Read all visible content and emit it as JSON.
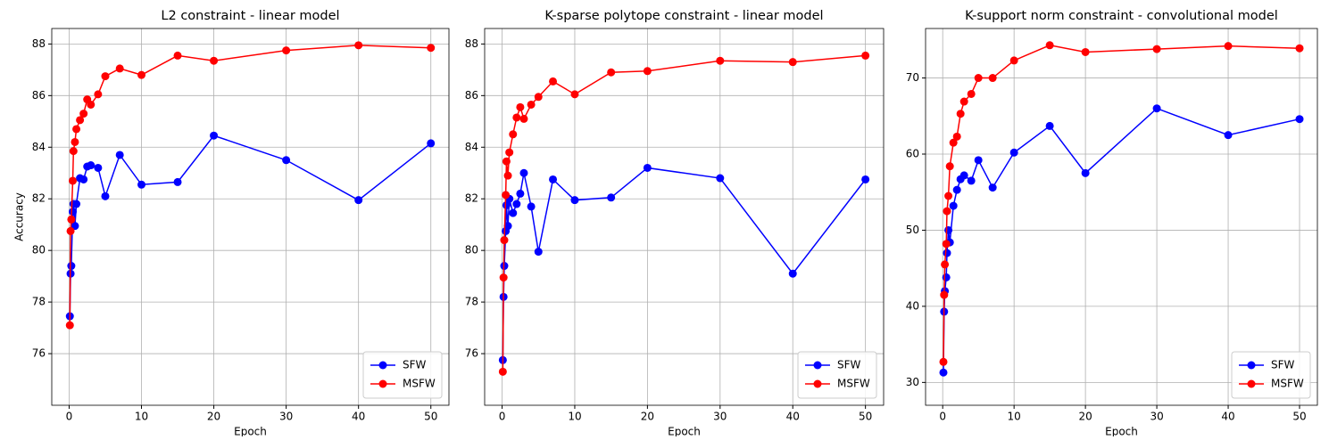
{
  "chart_data": [
    {
      "type": "line",
      "title": "L2 constraint - linear model",
      "xlabel": "Epoch",
      "ylabel": "Accuracy",
      "x": [
        0.1,
        0.2,
        0.3,
        0.5,
        0.6,
        0.8,
        1,
        1.5,
        2,
        2.5,
        3,
        4,
        5,
        7,
        10,
        15,
        20,
        30,
        40,
        50
      ],
      "series": [
        {
          "name": "SFW",
          "color": "#0000ff",
          "values": [
            77.45,
            79.1,
            79.4,
            81.5,
            81.8,
            80.95,
            81.8,
            82.8,
            82.75,
            83.25,
            83.3,
            83.2,
            82.1,
            83.7,
            82.55,
            82.65,
            84.45,
            83.5,
            81.95,
            84.15
          ]
        },
        {
          "name": "MSFW",
          "color": "#ff0000",
          "values": [
            77.1,
            80.75,
            81.2,
            82.7,
            83.85,
            84.2,
            84.7,
            85.05,
            85.3,
            85.85,
            85.65,
            86.05,
            86.75,
            87.05,
            86.8,
            87.55,
            87.35,
            87.75,
            87.95,
            87.85
          ]
        }
      ],
      "xlim": [
        -2.4,
        52.5
      ],
      "ylim": [
        74.0,
        88.6
      ],
      "xticks": [
        0,
        10,
        20,
        30,
        40,
        50
      ],
      "yticks": [
        76,
        78,
        80,
        82,
        84,
        86,
        88
      ],
      "grid": true,
      "legend": "lower right"
    },
    {
      "type": "line",
      "title": "K-sparse polytope constraint - linear model",
      "xlabel": "Epoch",
      "x": [
        0.1,
        0.2,
        0.3,
        0.5,
        0.6,
        0.8,
        1,
        1.5,
        2,
        2.5,
        3,
        4,
        5,
        7,
        10,
        15,
        20,
        30,
        40,
        50
      ],
      "series": [
        {
          "name": "SFW",
          "color": "#0000ff",
          "values": [
            75.75,
            78.2,
            79.4,
            80.75,
            81.75,
            80.95,
            82.0,
            81.45,
            81.8,
            82.2,
            83.0,
            81.7,
            79.95,
            82.75,
            81.95,
            82.05,
            83.2,
            82.8,
            79.1,
            82.75
          ]
        },
        {
          "name": "MSFW",
          "color": "#ff0000",
          "values": [
            75.3,
            78.95,
            80.4,
            82.15,
            83.45,
            82.9,
            83.8,
            84.5,
            85.15,
            85.55,
            85.1,
            85.65,
            85.95,
            86.55,
            86.05,
            86.9,
            86.95,
            87.35,
            87.3,
            87.55
          ]
        }
      ],
      "xlim": [
        -2.4,
        52.5
      ],
      "ylim": [
        74.0,
        88.6
      ],
      "xticks": [
        0,
        10,
        20,
        30,
        40,
        50
      ],
      "yticks": [
        76,
        78,
        80,
        82,
        84,
        86,
        88
      ],
      "grid": true,
      "legend": "lower right"
    },
    {
      "type": "line",
      "title": "K-support norm constraint - convolutional model",
      "xlabel": "Epoch",
      "x": [
        0.1,
        0.2,
        0.3,
        0.5,
        0.6,
        0.8,
        1,
        1.5,
        2,
        2.5,
        3,
        4,
        5,
        7,
        10,
        15,
        20,
        30,
        40,
        50
      ],
      "series": [
        {
          "name": "SFW",
          "color": "#0000ff",
          "values": [
            31.3,
            39.3,
            42.0,
            43.8,
            47.0,
            50.0,
            48.4,
            53.2,
            55.3,
            56.7,
            57.2,
            56.5,
            59.2,
            55.6,
            60.2,
            63.7,
            57.5,
            66.0,
            62.5,
            64.6
          ]
        },
        {
          "name": "MSFW",
          "color": "#ff0000",
          "values": [
            32.7,
            41.5,
            45.5,
            48.2,
            52.5,
            54.5,
            58.4,
            61.5,
            62.3,
            65.3,
            66.9,
            67.9,
            70.0,
            70.0,
            72.3,
            74.3,
            73.4,
            73.8,
            74.2,
            73.9
          ]
        }
      ],
      "xlim": [
        -2.4,
        52.5
      ],
      "ylim": [
        27.0,
        76.5
      ],
      "xticks": [
        0,
        10,
        20,
        30,
        40,
        50
      ],
      "yticks": [
        30,
        40,
        50,
        60,
        70
      ],
      "grid": true,
      "legend": "lower right"
    }
  ]
}
